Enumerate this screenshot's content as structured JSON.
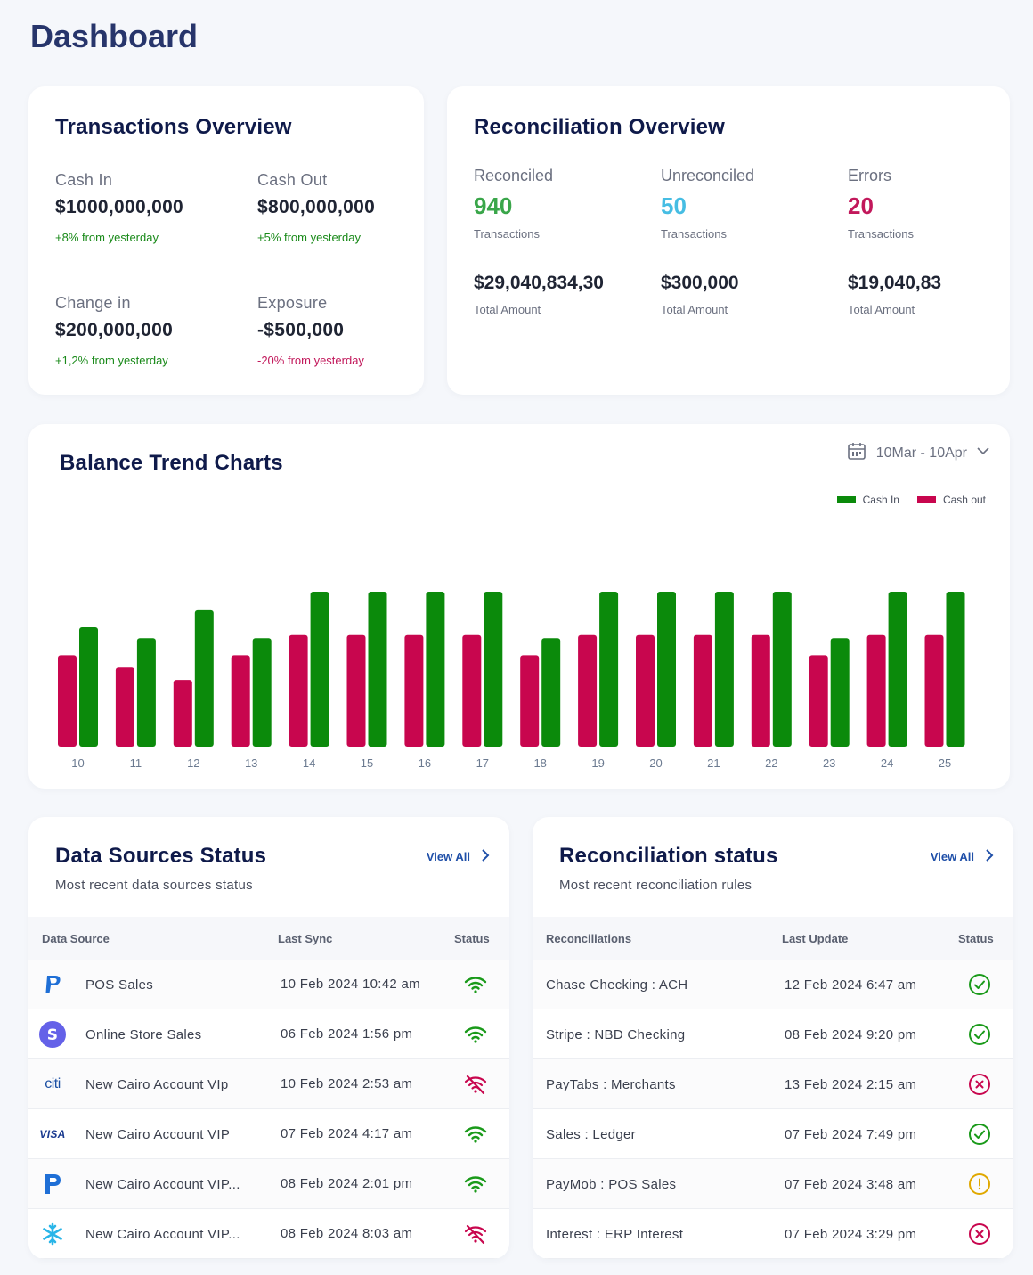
{
  "page": {
    "title": "Dashboard"
  },
  "transactions_overview": {
    "title": "Transactions Overview",
    "stats": [
      {
        "label": "Cash In",
        "value": "$1000,000,000",
        "change": "+8% from yesterday",
        "change_color": "#1a8a1a"
      },
      {
        "label": "Cash Out",
        "value": "$800,000,000",
        "change": "+5% from yesterday",
        "change_color": "#1a8a1a"
      },
      {
        "label": "Change in",
        "value": "$200,000,000",
        "change": "+1,2% from yesterday",
        "change_color": "#1a8a1a"
      },
      {
        "label": "Exposure",
        "value": "-$500,000",
        "change": "-20% from yesterday",
        "change_color": "#c2185b"
      }
    ]
  },
  "reconciliation_overview": {
    "title": "Reconciliation Overview",
    "columns": [
      {
        "label": "Reconciled",
        "count": "940",
        "count_color": "#3aa64a",
        "count_sub": "Transactions",
        "amount": "$29,040,834,30",
        "amount_sub": "Total Amount"
      },
      {
        "label": "Unreconciled",
        "count": "50",
        "count_color": "#46bde3",
        "count_sub": "Transactions",
        "amount": "$300,000",
        "amount_sub": "Total Amount"
      },
      {
        "label": "Errors",
        "count": "20",
        "count_color": "#c2185b",
        "count_sub": "Transactions",
        "amount": "$19,040,83",
        "amount_sub": "Total Amount"
      }
    ]
  },
  "balance_chart": {
    "title": "Balance Trend Charts",
    "date_range": "10Mar - 10Apr",
    "colors": {
      "cash_in": "#0b8a0b",
      "cash_out": "#c8064e"
    }
  },
  "chart_data": {
    "type": "bar",
    "title": "Balance Trend Charts",
    "categories": [
      "10",
      "11",
      "12",
      "13",
      "14",
      "15",
      "16",
      "17",
      "18",
      "19",
      "20",
      "21",
      "22",
      "23",
      "24",
      "25"
    ],
    "series": [
      {
        "name": "Cash out",
        "color": "#c8064e",
        "values": [
          59,
          51,
          43,
          59,
          72,
          72,
          72,
          72,
          59,
          72,
          72,
          72,
          72,
          59,
          72,
          72
        ]
      },
      {
        "name": "Cash In",
        "color": "#0b8a0b",
        "values": [
          77,
          70,
          88,
          70,
          100,
          100,
          100,
          100,
          70,
          100,
          100,
          100,
          100,
          70,
          100,
          100
        ]
      }
    ],
    "ylim": [
      0,
      100
    ],
    "legend": [
      {
        "label": "Cash In",
        "color": "#0b8a0b"
      },
      {
        "label": "Cash out",
        "color": "#c8064e"
      }
    ],
    "legend_position": "top-right"
  },
  "data_sources": {
    "title": "Data Sources Status",
    "subtitle": "Most recent data sources status",
    "view_all": "View All",
    "headers": {
      "source": "Data Source",
      "sync": "Last Sync",
      "status": "Status"
    },
    "rows": [
      {
        "logo": "paypal-icon",
        "name": "POS Sales",
        "sync": "10 Feb 2024 10:42 am",
        "status": "connected"
      },
      {
        "logo": "stripe-icon",
        "name": "Online Store Sales",
        "sync": "06 Feb 2024 1:56 pm",
        "status": "connected"
      },
      {
        "logo": "citi-icon",
        "logo_text": "citi",
        "name": "New Cairo Account VIp",
        "sync": "10 Feb 2024 2:53 am",
        "status": "disconnected"
      },
      {
        "logo": "visa-icon",
        "logo_text": "VISA",
        "name": "New Cairo Account VIP",
        "sync": "07 Feb 2024 4:17 am",
        "status": "connected"
      },
      {
        "logo": "paymob-icon",
        "name": "New Cairo Account VIP...",
        "sync": "08 Feb 2024 2:01 pm",
        "status": "connected"
      },
      {
        "logo": "snowflake-icon",
        "name": "New Cairo Account VIP...",
        "sync": "08 Feb 2024 8:03 am",
        "status": "disconnected"
      }
    ]
  },
  "reconciliation_status": {
    "title": "Reconciliation status",
    "subtitle": "Most recent reconciliation rules",
    "view_all": "View All",
    "headers": {
      "name": "Reconciliations",
      "update": "Last Update",
      "status": "Status"
    },
    "rows": [
      {
        "name": "Chase Checking : ACH",
        "update": "12 Feb 2024 6:47 am",
        "status": "success"
      },
      {
        "name": "Stripe : NBD Checking",
        "update": "08 Feb 2024 9:20 pm",
        "status": "success"
      },
      {
        "name": "PayTabs : Merchants",
        "update": "13 Feb 2024 2:15 am",
        "status": "error"
      },
      {
        "name": "Sales : Ledger",
        "update": "07 Feb 2024 7:49 pm",
        "status": "success"
      },
      {
        "name": "PayMob : POS Sales",
        "update": "07 Feb 2024 3:48 am",
        "status": "warning"
      },
      {
        "name": "Interest : ERP Interest",
        "update": "07 Feb 2024 3:29 pm",
        "status": "error"
      }
    ]
  }
}
